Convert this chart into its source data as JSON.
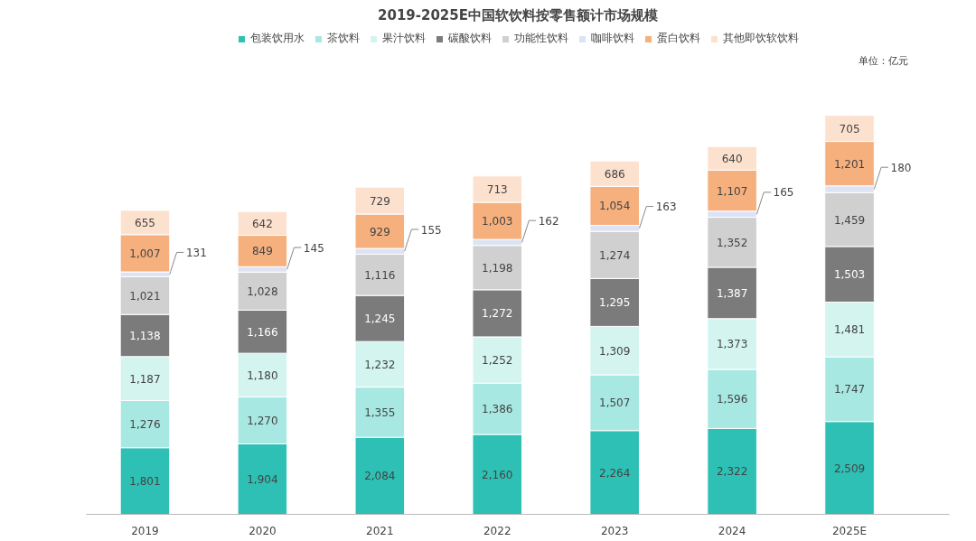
{
  "chart_data": {
    "type": "bar",
    "stacked": true,
    "title": "2019-2025E中国软饮料按零售额计市场规模",
    "categories": [
      "2019",
      "2020",
      "2021",
      "2022",
      "2023",
      "2024",
      "2025E"
    ],
    "series": [
      {
        "name": "包装饮用水",
        "color": "#2ec0b4",
        "values": [
          1801,
          1904,
          2084,
          2160,
          2264,
          2322,
          2509
        ],
        "value_labels": [
          "1,801",
          "1,904",
          "2,084",
          "2,160",
          "2,264",
          "2,322",
          "2,509"
        ]
      },
      {
        "name": "茶饮料",
        "color": "#a8e8e2",
        "values": [
          1276,
          1270,
          1355,
          1386,
          1507,
          1596,
          1747
        ],
        "value_labels": [
          "1,276",
          "1,270",
          "1,355",
          "1,386",
          "1,507",
          "1,596",
          "1,747"
        ]
      },
      {
        "name": "果汁饮料",
        "color": "#d3f4ef",
        "values": [
          1187,
          1180,
          1232,
          1252,
          1309,
          1373,
          1481
        ],
        "value_labels": [
          "1,187",
          "1,180",
          "1,232",
          "1,252",
          "1,309",
          "1,373",
          "1,481"
        ]
      },
      {
        "name": "碳酸饮料",
        "color": "#7b7b7b",
        "values": [
          1138,
          1166,
          1245,
          1272,
          1295,
          1387,
          1503
        ],
        "value_labels": [
          "1,138",
          "1,166",
          "1,245",
          "1,272",
          "1,295",
          "1,387",
          "1,503"
        ]
      },
      {
        "name": "功能性饮料",
        "color": "#d0d0d0",
        "values": [
          1021,
          1028,
          1116,
          1198,
          1274,
          1352,
          1459
        ],
        "value_labels": [
          "1,021",
          "1,028",
          "1,116",
          "1,198",
          "1,274",
          "1,352",
          "1,459"
        ]
      },
      {
        "name": "咖啡饮料",
        "color": "#dde3f4",
        "values": [
          131,
          145,
          155,
          162,
          163,
          165,
          180
        ],
        "value_labels": [
          "131",
          "145",
          "155",
          "162",
          "163",
          "165",
          "180"
        ]
      },
      {
        "name": "蛋白饮料",
        "color": "#f5b07e",
        "values": [
          1007,
          849,
          929,
          1003,
          1054,
          1107,
          1201
        ],
        "value_labels": [
          "1,007",
          "849",
          "929",
          "1,003",
          "1,054",
          "1,107",
          "1,201"
        ]
      },
      {
        "name": "其他即饮软饮料",
        "color": "#fde1cf",
        "values": [
          655,
          642,
          729,
          713,
          686,
          640,
          705
        ],
        "value_labels": [
          "655",
          "642",
          "729",
          "713",
          "686",
          "640",
          "705"
        ]
      }
    ],
    "legend": "top",
    "grid": false,
    "annotations": [
      "单位：亿元"
    ]
  }
}
